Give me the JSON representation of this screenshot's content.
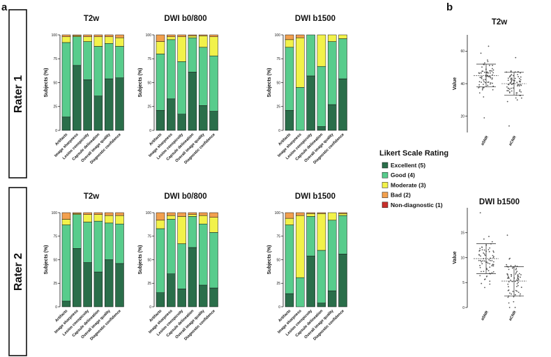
{
  "panel_labels": {
    "a": "a",
    "b": "b"
  },
  "rater_labels": [
    "Rater 1",
    "Rater 2"
  ],
  "legend": {
    "title": "Likert Scale Rating",
    "items": [
      {
        "label": "Excellent (5)",
        "color": "#2a6e4a"
      },
      {
        "label": "Good (4)",
        "color": "#58cc8c"
      },
      {
        "label": "Moderate (3)",
        "color": "#f2f24a"
      },
      {
        "label": "Bad (2)",
        "color": "#f2a04e"
      },
      {
        "label": "Non-diagnostic (1)",
        "color": "#c8302c"
      }
    ]
  },
  "chart_data": [
    {
      "type": "bar",
      "stacked": true,
      "rater": "Rater 1",
      "title": "T2w",
      "ylabel": "Subjects (%)",
      "ylim": [
        0,
        100
      ],
      "yticks": [
        "0",
        "25",
        "50",
        "75",
        "100"
      ],
      "categories": [
        "Artifacts",
        "Image sharpness",
        "Lesion conspicuity",
        "Capsule delineation",
        "Overall image quality",
        "Diagnostic confidence"
      ],
      "series": [
        {
          "name": "Excellent (5)",
          "values": [
            14,
            68,
            53,
            36,
            54,
            55
          ]
        },
        {
          "name": "Good (4)",
          "values": [
            78,
            30,
            40,
            52,
            37,
            33
          ]
        },
        {
          "name": "Moderate (3)",
          "values": [
            6,
            1,
            5,
            10,
            7,
            9
          ]
        },
        {
          "name": "Bad (2)",
          "values": [
            2,
            1,
            2,
            2,
            2,
            3
          ]
        },
        {
          "name": "Non-diagnostic (1)",
          "values": [
            0,
            0,
            0,
            0,
            0,
            0
          ]
        }
      ]
    },
    {
      "type": "bar",
      "stacked": true,
      "rater": "Rater 1",
      "title": "DWI b0/800",
      "ylabel": "Subjects (%)",
      "ylim": [
        0,
        100
      ],
      "yticks": [
        "0",
        "25",
        "50",
        "75",
        "100"
      ],
      "categories": [
        "Artifacts",
        "Image sharpness",
        "Lesion conspicuity",
        "Capsule delineation",
        "Overall image quality",
        "Diagnostic confidence"
      ],
      "series": [
        {
          "name": "Excellent (5)",
          "values": [
            21,
            33,
            17,
            61,
            26,
            20
          ]
        },
        {
          "name": "Good (4)",
          "values": [
            59,
            62,
            55,
            36,
            61,
            58
          ]
        },
        {
          "name": "Moderate (3)",
          "values": [
            13,
            3,
            26,
            2,
            12,
            20
          ]
        },
        {
          "name": "Bad (2)",
          "values": [
            7,
            2,
            2,
            1,
            1,
            2
          ]
        },
        {
          "name": "Non-diagnostic (1)",
          "values": [
            0,
            0,
            0,
            0,
            0,
            0
          ]
        }
      ]
    },
    {
      "type": "bar",
      "stacked": true,
      "rater": "Rater 1",
      "title": "DWI b1500",
      "ylabel": "Subjects (%)",
      "ylim": [
        0,
        100
      ],
      "yticks": [
        "0",
        "25",
        "50",
        "75",
        "100"
      ],
      "categories": [
        "Artifacts",
        "Image sharpness",
        "Lesion conspicuity",
        "Capsule delineation",
        "Overall image quality",
        "Diagnostic confidence"
      ],
      "series": [
        {
          "name": "Excellent (5)",
          "values": [
            21,
            0,
            57,
            4,
            27,
            54
          ]
        },
        {
          "name": "Good (4)",
          "values": [
            66,
            45,
            43,
            63,
            66,
            42
          ]
        },
        {
          "name": "Moderate (3)",
          "values": [
            8,
            52,
            0,
            33,
            7,
            4
          ]
        },
        {
          "name": "Bad (2)",
          "values": [
            5,
            3,
            0,
            0,
            0,
            0
          ]
        },
        {
          "name": "Non-diagnostic (1)",
          "values": [
            0,
            0,
            0,
            0,
            0,
            0
          ]
        }
      ]
    },
    {
      "type": "bar",
      "stacked": true,
      "rater": "Rater 2",
      "title": "T2w",
      "ylabel": "Subjects (%)",
      "ylim": [
        0,
        100
      ],
      "yticks": [
        "0",
        "25",
        "50",
        "75",
        "100"
      ],
      "categories": [
        "Artifacts",
        "Image sharpness",
        "Lesion conspicuity",
        "Capsule delineation",
        "Overall image quality",
        "Diagnostic confidence"
      ],
      "series": [
        {
          "name": "Excellent (5)",
          "values": [
            6,
            62,
            47,
            37,
            50,
            46
          ]
        },
        {
          "name": "Good (4)",
          "values": [
            81,
            36,
            43,
            54,
            39,
            42
          ]
        },
        {
          "name": "Moderate (3)",
          "values": [
            6,
            1,
            8,
            7,
            8,
            9
          ]
        },
        {
          "name": "Bad (2)",
          "values": [
            7,
            1,
            2,
            2,
            3,
            3
          ]
        },
        {
          "name": "Non-diagnostic (1)",
          "values": [
            0,
            0,
            0,
            0,
            0,
            0
          ]
        }
      ]
    },
    {
      "type": "bar",
      "stacked": true,
      "rater": "Rater 2",
      "title": "DWI b0/800",
      "ylabel": "Subjects (%)",
      "ylim": [
        0,
        100
      ],
      "yticks": [
        "0",
        "25",
        "50",
        "75",
        "100"
      ],
      "categories": [
        "Artifacts",
        "Image sharpness",
        "Lesion conspicuity",
        "Capsule delineation",
        "Overall image quality",
        "Diagnostic confidence"
      ],
      "series": [
        {
          "name": "Excellent (5)",
          "values": [
            15,
            35,
            19,
            63,
            23,
            20
          ]
        },
        {
          "name": "Good (4)",
          "values": [
            68,
            58,
            48,
            33,
            65,
            59
          ]
        },
        {
          "name": "Moderate (3)",
          "values": [
            9,
            4,
            29,
            2,
            9,
            16
          ]
        },
        {
          "name": "Bad (2)",
          "values": [
            8,
            3,
            4,
            2,
            3,
            5
          ]
        },
        {
          "name": "Non-diagnostic (1)",
          "values": [
            0,
            0,
            0,
            0,
            0,
            0
          ]
        }
      ]
    },
    {
      "type": "bar",
      "stacked": true,
      "rater": "Rater 2",
      "title": "DWI b1500",
      "ylabel": "Subjects (%)",
      "ylim": [
        0,
        100
      ],
      "yticks": [
        "0",
        "25",
        "50",
        "75",
        "100"
      ],
      "categories": [
        "Artifacts",
        "Image sharpness",
        "Lesion conspicuity",
        "Capsule delineation",
        "Overall image quality",
        "Diagnostic confidence"
      ],
      "series": [
        {
          "name": "Excellent (5)",
          "values": [
            14,
            0,
            54,
            4,
            17,
            56
          ]
        },
        {
          "name": "Good (4)",
          "values": [
            73,
            31,
            42,
            56,
            75,
            41
          ]
        },
        {
          "name": "Moderate (3)",
          "values": [
            7,
            66,
            3,
            39,
            8,
            2
          ]
        },
        {
          "name": "Bad (2)",
          "values": [
            6,
            3,
            1,
            1,
            0,
            1
          ]
        },
        {
          "name": "Non-diagnostic (1)",
          "values": [
            0,
            0,
            0,
            0,
            0,
            0
          ]
        }
      ]
    },
    {
      "type": "scatter",
      "title": "T2w",
      "ylabel": "Value",
      "ylim": [
        10,
        70
      ],
      "yticks": [
        20,
        40,
        60
      ],
      "categories": [
        "aSNR",
        "aCNR"
      ],
      "series": [
        {
          "name": "aSNR",
          "mean": 45,
          "sd_low": 38,
          "sd_high": 52,
          "min": 19,
          "max": 63
        },
        {
          "name": "aCNR",
          "mean": 40,
          "sd_low": 33,
          "sd_high": 47,
          "min": 14,
          "max": 56
        }
      ]
    },
    {
      "type": "scatter",
      "title": "DWI b1500",
      "ylabel": "Value",
      "ylim": [
        0,
        20
      ],
      "yticks": [
        0,
        5,
        10,
        15
      ],
      "categories": [
        "aSNR",
        "aCNR"
      ],
      "series": [
        {
          "name": "aSNR",
          "mean": 9.8,
          "sd_low": 6.8,
          "sd_high": 12.8,
          "min": 4,
          "max": 19
        },
        {
          "name": "aCNR",
          "mean": 5.3,
          "sd_low": 2.3,
          "sd_high": 8.2,
          "min": 0,
          "max": 14.5
        }
      ]
    }
  ]
}
